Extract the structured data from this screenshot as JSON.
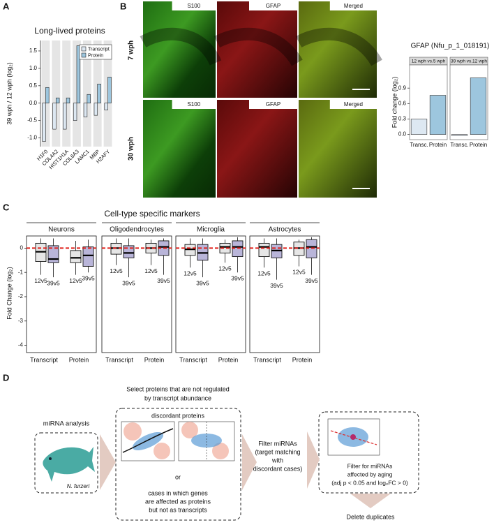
{
  "panels": {
    "a": "A",
    "b": "B",
    "c": "C",
    "d": "D"
  },
  "chart_data": [
    {
      "type": "bar",
      "title": "Long-lived proteins",
      "ylabel": "39 wph / 12 wph (log₂)",
      "categories": [
        "H1F0",
        "COL4A2",
        "HIST1H1A",
        "COL6A3",
        "LAMC1",
        "MBP",
        "H2AFY"
      ],
      "series": [
        {
          "name": "Transcript",
          "color": "#dde8f2",
          "values": [
            -1.1,
            -0.75,
            -0.75,
            -0.5,
            -0.4,
            -0.35,
            -0.2
          ]
        },
        {
          "name": "Protein",
          "color": "#9dc6de",
          "values": [
            0.45,
            0.15,
            0.15,
            1.65,
            0.25,
            0.55,
            0.75
          ]
        }
      ],
      "ylim": [
        -1.25,
        1.8
      ],
      "yticks": [
        {
          "value": -1,
          "label": "-1.0"
        },
        -0.5,
        {
          "value": 0,
          "label": "0.0"
        },
        0.5,
        {
          "value": 1,
          "label": "1.0"
        },
        1.5
      ],
      "legend": "top-right"
    },
    {
      "type": "facet-bar",
      "title": "GFAP (Nfu_p_1_018191)",
      "ylabel": "Fold change (log₂)",
      "colors": [
        "#dde8f2",
        "#9dc6de"
      ],
      "ylim": [
        -0.1,
        1.35
      ],
      "yticks": [
        {
          "value": 0,
          "label": "0.0"
        },
        0.3,
        0.6,
        0.9
      ],
      "facets": [
        {
          "label": "12 wph vs.5 wph",
          "categories": [
            "Transc.",
            "Protein"
          ],
          "values": [
            0.3,
            0.76
          ]
        },
        {
          "label": "39 wph vs.12 wph",
          "categories": [
            "Transc.",
            "Protein"
          ],
          "values": [
            -0.02,
            1.1
          ]
        }
      ]
    },
    {
      "type": "box",
      "title": "Cell-type specific markers",
      "ylabel": "Fold Change (log₂)",
      "ylim": [
        -4.3,
        0.5
      ],
      "yticks": [
        0,
        -1,
        -2,
        -3,
        -4
      ],
      "reference_line": 0,
      "facets": [
        {
          "name": "Neurons",
          "groups": [
            {
              "name": "Transcript",
              "boxes": [
                {
                  "label": "12v5",
                  "color": "#e6e6e6",
                  "whisker_low": -1.1,
                  "q1": -0.55,
                  "median": -0.15,
                  "q3": 0.2,
                  "whisker_high": 0.4
                },
                {
                  "label": "39v5",
                  "color": "#b9b5d9",
                  "whisker_low": -1.2,
                  "q1": -0.6,
                  "median": -0.45,
                  "q3": 0.1,
                  "whisker_high": 0.4
                }
              ]
            },
            {
              "name": "Protein",
              "boxes": [
                {
                  "label": "12v5",
                  "color": "#e6e6e6",
                  "whisker_low": -1.1,
                  "q1": -0.6,
                  "median": -0.4,
                  "q3": -0.1,
                  "whisker_high": 0.3
                },
                {
                  "label": "39v5",
                  "color": "#b9b5d9",
                  "whisker_low": -1.0,
                  "q1": -0.75,
                  "median": -0.3,
                  "q3": 0.05,
                  "whisker_high": 0.35
                }
              ]
            }
          ]
        },
        {
          "name": "Oligodendrocytes",
          "groups": [
            {
              "name": "Transcript",
              "boxes": [
                {
                  "label": "12v5",
                  "color": "#e6e6e6",
                  "whisker_low": -0.7,
                  "q1": -0.25,
                  "median": 0,
                  "q3": 0.2,
                  "whisker_high": 0.4
                },
                {
                  "label": "39v5",
                  "color": "#b9b5d9",
                  "whisker_low": -1.2,
                  "q1": -0.4,
                  "median": -0.2,
                  "q3": 0.1,
                  "whisker_high": 0.4
                }
              ]
            },
            {
              "name": "Protein",
              "boxes": [
                {
                  "label": "12v5",
                  "color": "#e6e6e6",
                  "whisker_low": -0.7,
                  "q1": -0.2,
                  "median": 0,
                  "q3": 0.2,
                  "whisker_high": 0.35
                },
                {
                  "label": "39v5",
                  "color": "#b9b5d9",
                  "whisker_low": -1.1,
                  "q1": -0.3,
                  "median": 0.05,
                  "q3": 0.3,
                  "whisker_high": 0.4
                }
              ]
            }
          ]
        },
        {
          "name": "Microglia",
          "groups": [
            {
              "name": "Transcript",
              "boxes": [
                {
                  "label": "12v5",
                  "color": "#e6e6e6",
                  "whisker_low": -0.8,
                  "q1": -0.3,
                  "median": -0.05,
                  "q3": 0.15,
                  "whisker_high": 0.4
                },
                {
                  "label": "39v5",
                  "color": "#b9b5d9",
                  "whisker_low": -1.2,
                  "q1": -0.5,
                  "median": -0.2,
                  "q3": 0.15,
                  "whisker_high": 0.4
                }
              ]
            },
            {
              "name": "Protein",
              "boxes": [
                {
                  "label": "12v5",
                  "color": "#e6e6e6",
                  "whisker_low": -0.6,
                  "q1": -0.2,
                  "median": 0.05,
                  "q3": 0.2,
                  "whisker_high": 0.35
                },
                {
                  "label": "39v5",
                  "color": "#b9b5d9",
                  "whisker_low": -1.0,
                  "q1": -0.35,
                  "median": 0.05,
                  "q3": 0.3,
                  "whisker_high": 0.45
                }
              ]
            }
          ]
        },
        {
          "name": "Astrocytes",
          "groups": [
            {
              "name": "Transcript",
              "boxes": [
                {
                  "label": "12v5",
                  "color": "#e6e6e6",
                  "whisker_low": -0.8,
                  "q1": -0.35,
                  "median": 0.05,
                  "q3": 0.2,
                  "whisker_high": 0.4
                },
                {
                  "label": "39v5",
                  "color": "#b9b5d9",
                  "whisker_low": -1.3,
                  "q1": -0.4,
                  "median": -0.1,
                  "q3": 0.15,
                  "whisker_high": 0.4
                }
              ]
            },
            {
              "name": "Protein",
              "boxes": [
                {
                  "label": "12v5",
                  "color": "#e6e6e6",
                  "whisker_low": -0.75,
                  "q1": -0.3,
                  "median": 0,
                  "q3": 0.25,
                  "whisker_high": 0.35
                },
                {
                  "label": "39v5",
                  "color": "#b9b5d9",
                  "whisker_low": -1.1,
                  "q1": -0.4,
                  "median": 0.05,
                  "q3": 0.35,
                  "whisker_high": 0.45
                }
              ]
            }
          ]
        }
      ]
    }
  ],
  "microscopy": {
    "columns": [
      "S100",
      "GFAP",
      "Merged"
    ],
    "rows": [
      "7 wph",
      "30 wph"
    ]
  },
  "diagram": {
    "heading": [
      "Select proteins that are not regulated",
      "by transcript abundance"
    ],
    "source": "miRNA analysis",
    "species": "N. furzeri",
    "discordant": "discordant proteins",
    "or": "or",
    "cases": [
      "cases in which genes",
      "are affected as proteins",
      "but not as transcripts"
    ],
    "filter_targets": [
      "Filter miRNAs",
      "(target matching",
      "with",
      "discordant cases)"
    ],
    "filter_aging": [
      "Filter for miRNAs",
      "affected by aging",
      "(adj p < 0.05 and log₂FC > 0)"
    ],
    "final": "Delete duplicates"
  }
}
